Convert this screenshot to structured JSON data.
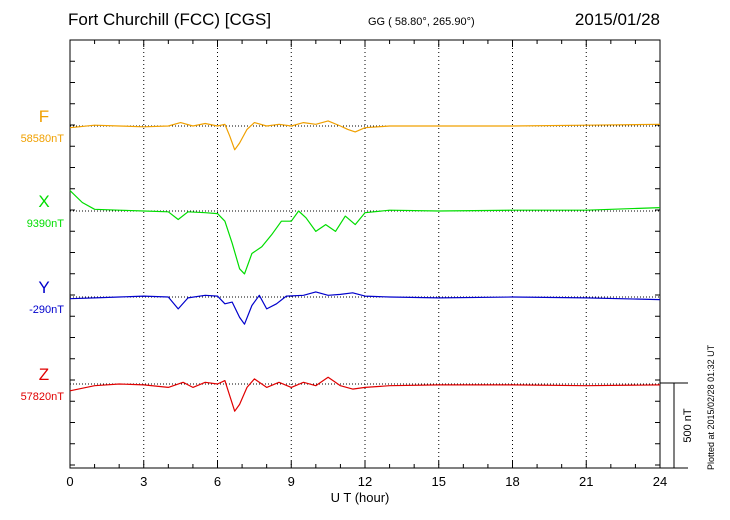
{
  "header": {
    "title": "Fort Churchill (FCC)  [CGS]",
    "coords": "GG ( 58.80°, 265.90°)",
    "date": "2015/01/28"
  },
  "plot_note": "Plotted at 2015/02/28 01:32 UT",
  "scale_label": "500 nT",
  "colors": {
    "F": "#f0a000",
    "X": "#00dd00",
    "Y": "#0000cc",
    "Z": "#e00000"
  },
  "chart_data": {
    "type": "line",
    "title": "Fort Churchill (FCC)  [CGS]",
    "xlabel": "U T (hour)",
    "xlim": [
      0,
      24
    ],
    "xticks": [
      "0",
      "3",
      "6",
      "9",
      "12",
      "15",
      "18",
      "21",
      "24"
    ],
    "scale_bar_nT": 500,
    "grid": true,
    "series": [
      {
        "name": "F",
        "baseline_label": "58580nT",
        "baseline": 58580,
        "points": [
          [
            0,
            58570
          ],
          [
            1,
            58585
          ],
          [
            2,
            58580
          ],
          [
            3,
            58575
          ],
          [
            4,
            58580
          ],
          [
            4.5,
            58600
          ],
          [
            5,
            58580
          ],
          [
            5.5,
            58595
          ],
          [
            6,
            58580
          ],
          [
            6.3,
            58590
          ],
          [
            6.5,
            58520
          ],
          [
            6.7,
            58440
          ],
          [
            6.9,
            58480
          ],
          [
            7.2,
            58560
          ],
          [
            7.5,
            58600
          ],
          [
            8,
            58580
          ],
          [
            8.5,
            58590
          ],
          [
            9,
            58580
          ],
          [
            9.5,
            58600
          ],
          [
            10,
            58590
          ],
          [
            10.5,
            58610
          ],
          [
            11,
            58580
          ],
          [
            11.3,
            58560
          ],
          [
            11.6,
            58545
          ],
          [
            12,
            58570
          ],
          [
            13,
            58580
          ],
          [
            15,
            58580
          ],
          [
            18,
            58580
          ],
          [
            21,
            58585
          ],
          [
            24,
            58590
          ]
        ]
      },
      {
        "name": "X",
        "baseline_label": "9390nT",
        "baseline": 9390,
        "points": [
          [
            0,
            9510
          ],
          [
            0.5,
            9440
          ],
          [
            1,
            9400
          ],
          [
            2,
            9395
          ],
          [
            3,
            9390
          ],
          [
            4,
            9385
          ],
          [
            4.4,
            9340
          ],
          [
            4.8,
            9385
          ],
          [
            5.5,
            9380
          ],
          [
            6,
            9375
          ],
          [
            6.3,
            9330
          ],
          [
            6.6,
            9200
          ],
          [
            6.9,
            9050
          ],
          [
            7.1,
            9020
          ],
          [
            7.4,
            9140
          ],
          [
            7.8,
            9180
          ],
          [
            8.2,
            9250
          ],
          [
            8.6,
            9330
          ],
          [
            9,
            9330
          ],
          [
            9.3,
            9390
          ],
          [
            9.6,
            9350
          ],
          [
            10,
            9270
          ],
          [
            10.4,
            9310
          ],
          [
            10.8,
            9270
          ],
          [
            11.2,
            9360
          ],
          [
            11.6,
            9310
          ],
          [
            12,
            9380
          ],
          [
            13,
            9395
          ],
          [
            15,
            9390
          ],
          [
            18,
            9395
          ],
          [
            21,
            9395
          ],
          [
            24,
            9410
          ]
        ]
      },
      {
        "name": "Y",
        "baseline_label": "-290nT",
        "baseline": -290,
        "points": [
          [
            0,
            -300
          ],
          [
            1,
            -295
          ],
          [
            2,
            -290
          ],
          [
            3,
            -285
          ],
          [
            4,
            -290
          ],
          [
            4.4,
            -360
          ],
          [
            4.8,
            -295
          ],
          [
            5.5,
            -280
          ],
          [
            6,
            -285
          ],
          [
            6.3,
            -330
          ],
          [
            6.6,
            -320
          ],
          [
            6.9,
            -410
          ],
          [
            7.1,
            -450
          ],
          [
            7.4,
            -340
          ],
          [
            7.7,
            -280
          ],
          [
            8,
            -360
          ],
          [
            8.4,
            -330
          ],
          [
            8.8,
            -285
          ],
          [
            9.5,
            -280
          ],
          [
            10,
            -260
          ],
          [
            10.5,
            -280
          ],
          [
            11,
            -275
          ],
          [
            11.5,
            -265
          ],
          [
            12,
            -285
          ],
          [
            13,
            -290
          ],
          [
            15,
            -295
          ],
          [
            18,
            -290
          ],
          [
            21,
            -295
          ],
          [
            24,
            -305
          ]
        ]
      },
      {
        "name": "Z",
        "baseline_label": "57820nT",
        "baseline": 57820,
        "points": [
          [
            0,
            57780
          ],
          [
            1,
            57810
          ],
          [
            2,
            57820
          ],
          [
            3,
            57815
          ],
          [
            4,
            57800
          ],
          [
            4.6,
            57830
          ],
          [
            5,
            57800
          ],
          [
            5.5,
            57830
          ],
          [
            6,
            57820
          ],
          [
            6.3,
            57840
          ],
          [
            6.5,
            57750
          ],
          [
            6.7,
            57660
          ],
          [
            6.9,
            57700
          ],
          [
            7.2,
            57800
          ],
          [
            7.5,
            57850
          ],
          [
            8,
            57800
          ],
          [
            8.5,
            57830
          ],
          [
            9,
            57800
          ],
          [
            9.5,
            57830
          ],
          [
            10,
            57810
          ],
          [
            10.5,
            57860
          ],
          [
            11,
            57810
          ],
          [
            11.5,
            57790
          ],
          [
            12,
            57800
          ],
          [
            13,
            57810
          ],
          [
            15,
            57815
          ],
          [
            18,
            57815
          ],
          [
            21,
            57810
          ],
          [
            24,
            57815
          ]
        ]
      }
    ]
  }
}
